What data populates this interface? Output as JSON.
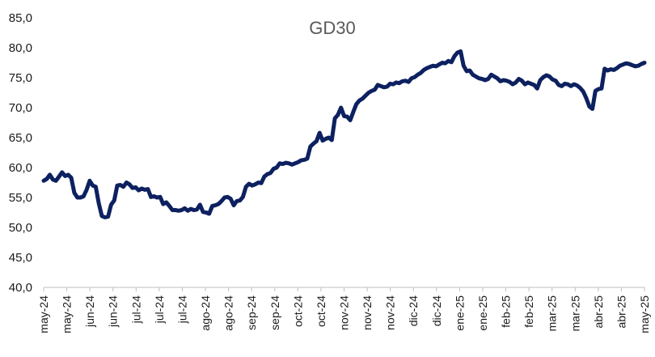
{
  "chart_data": {
    "type": "line",
    "title": "GD30",
    "xlabel": "",
    "ylabel": "",
    "ylim": [
      40,
      85
    ],
    "y_ticks": [
      "40,0",
      "45,0",
      "50,0",
      "55,0",
      "60,0",
      "65,0",
      "70,0",
      "75,0",
      "80,0",
      "85,0"
    ],
    "y_tick_values": [
      40,
      45,
      50,
      55,
      60,
      65,
      70,
      75,
      80,
      85
    ],
    "x_tick_labels": [
      "may-24",
      "may-24",
      "jun-24",
      "jun-24",
      "jul-24",
      "jul-24",
      "jul-24",
      "ago-24",
      "ago-24",
      "sep-24",
      "sep-24",
      "oct-24",
      "oct-24",
      "nov-24",
      "nov-24",
      "nov-24",
      "dic-24",
      "dic-24",
      "ene-25",
      "ene-25",
      "feb-25",
      "feb-25",
      "mar-25",
      "mar-25",
      "abr-25",
      "abr-25",
      "may-25"
    ],
    "line_color": "#0d2160",
    "series": [
      {
        "name": "GD30",
        "values": [
          57.8,
          58.1,
          58.8,
          58.0,
          57.8,
          58.5,
          59.2,
          58.6,
          58.8,
          58.3,
          55.8,
          55.0,
          55.0,
          55.2,
          56.3,
          57.8,
          57.0,
          56.8,
          54.0,
          51.9,
          51.7,
          51.8,
          53.8,
          54.5,
          57.0,
          57.1,
          56.8,
          57.5,
          57.2,
          56.6,
          56.7,
          56.2,
          56.5,
          56.3,
          56.4,
          55.1,
          55.2,
          55.0,
          55.1,
          53.9,
          54.2,
          53.6,
          52.9,
          52.9,
          52.8,
          52.9,
          53.2,
          52.8,
          53.1,
          52.9,
          53.0,
          53.8,
          52.6,
          52.5,
          52.3,
          53.6,
          53.7,
          53.9,
          54.4,
          55.0,
          55.1,
          54.8,
          53.7,
          54.4,
          54.5,
          55.1,
          56.8,
          57.3,
          57.0,
          57.2,
          57.5,
          57.4,
          58.5,
          58.9,
          59.1,
          59.8,
          60.0,
          60.7,
          60.6,
          60.8,
          60.7,
          60.5,
          60.7,
          60.9,
          61.2,
          61.3,
          61.5,
          63.5,
          64.0,
          64.4,
          65.8,
          64.5,
          64.8,
          65.0,
          64.6,
          68.2,
          68.8,
          70.0,
          68.6,
          68.5,
          67.9,
          69.3,
          70.6,
          71.2,
          71.5,
          72.0,
          72.5,
          72.8,
          73.0,
          73.8,
          73.6,
          73.4,
          73.5,
          74.0,
          73.9,
          74.2,
          74.1,
          74.4,
          74.5,
          74.3,
          74.9,
          75.1,
          75.5,
          75.8,
          76.3,
          76.6,
          76.8,
          77.0,
          76.9,
          77.2,
          77.5,
          77.4,
          77.8,
          77.6,
          78.6,
          79.2,
          79.4,
          77.0,
          76.1,
          76.2,
          75.5,
          75.2,
          74.9,
          74.8,
          74.6,
          74.8,
          75.5,
          75.2,
          74.9,
          74.4,
          74.6,
          74.5,
          74.3,
          73.9,
          74.2,
          74.8,
          74.5,
          73.9,
          74.2,
          74.0,
          73.8,
          73.2,
          74.6,
          75.1,
          75.4,
          75.2,
          74.7,
          74.5,
          73.8,
          73.6,
          74.0,
          73.9,
          73.6,
          73.9,
          73.7,
          73.3,
          72.7,
          71.6,
          70.2,
          69.8,
          72.8,
          73.1,
          73.2,
          76.5,
          76.2,
          76.4,
          76.3,
          76.6,
          77.0,
          77.2,
          77.4,
          77.3,
          77.1,
          76.9,
          77.0,
          77.3,
          77.5
        ]
      }
    ]
  }
}
